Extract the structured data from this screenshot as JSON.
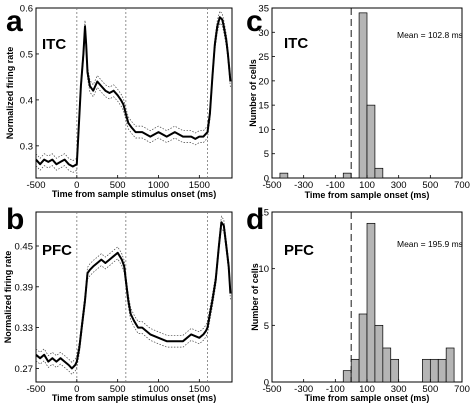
{
  "panels": {
    "a": {
      "letter": "a",
      "region": "ITC"
    },
    "b": {
      "letter": "b",
      "region": "PFC"
    },
    "c": {
      "letter": "c",
      "region": "ITC",
      "mean_label": "Mean = 102.8 ms"
    },
    "d": {
      "letter": "d",
      "region": "PFC",
      "mean_label": "Mean = 195.9 ms"
    }
  },
  "chart_data": [
    {
      "panel": "a",
      "type": "line",
      "title": "",
      "xlabel": "Time from sample stimulus onset   (ms)",
      "ylabel": "Normalized firing rate",
      "xlim": [
        -500,
        1900
      ],
      "ylim": [
        0.23,
        0.6
      ],
      "xticks": [
        -500,
        0,
        500,
        1000,
        1500
      ],
      "yticks": [
        0.3,
        0.4,
        0.5,
        0.6
      ],
      "ytick_labels": [
        "0.3",
        "0.4",
        "0.5",
        "0.6"
      ],
      "vlines": [
        0,
        600,
        1600
      ],
      "grid": false,
      "series": [
        {
          "x": [
            -500,
            -450,
            -400,
            -350,
            -300,
            -250,
            -200,
            -150,
            -100,
            -50,
            0,
            20,
            50,
            80,
            100,
            115,
            130,
            160,
            200,
            250,
            300,
            350,
            400,
            450,
            500,
            540,
            570,
            600,
            630,
            670,
            720,
            800,
            900,
            1000,
            1100,
            1200,
            1300,
            1400,
            1450,
            1500,
            1550,
            1600,
            1630,
            1660,
            1690,
            1720,
            1750,
            1780,
            1800,
            1830,
            1850,
            1870,
            1880
          ],
          "y": [
            0.27,
            0.26,
            0.27,
            0.265,
            0.27,
            0.26,
            0.265,
            0.27,
            0.26,
            0.255,
            0.26,
            0.33,
            0.43,
            0.5,
            0.56,
            0.52,
            0.46,
            0.43,
            0.42,
            0.44,
            0.43,
            0.42,
            0.415,
            0.42,
            0.41,
            0.4,
            0.39,
            0.37,
            0.35,
            0.34,
            0.33,
            0.33,
            0.32,
            0.33,
            0.32,
            0.33,
            0.32,
            0.32,
            0.315,
            0.32,
            0.32,
            0.33,
            0.37,
            0.45,
            0.52,
            0.56,
            0.58,
            0.575,
            0.56,
            0.53,
            0.5,
            0.46,
            0.44
          ]
        }
      ]
    },
    {
      "panel": "b",
      "type": "line",
      "title": "",
      "xlabel": "Time from sample stimulus onset   (ms)",
      "ylabel": "Normalized firing rate",
      "xlim": [
        -500,
        1900
      ],
      "ylim": [
        0.25,
        0.5
      ],
      "xticks": [
        -500,
        0,
        500,
        1000,
        1500
      ],
      "yticks": [
        0.27,
        0.33,
        0.39,
        0.45
      ],
      "ytick_labels": [
        "0.27",
        "0.33",
        "0.39",
        "0.45"
      ],
      "vlines": [
        0,
        600,
        1600
      ],
      "grid": false,
      "series": [
        {
          "x": [
            -500,
            -450,
            -400,
            -350,
            -300,
            -250,
            -200,
            -150,
            -100,
            -60,
            -20,
            0,
            30,
            60,
            100,
            130,
            160,
            200,
            250,
            300,
            350,
            400,
            450,
            500,
            550,
            580,
            600,
            630,
            660,
            700,
            750,
            800,
            900,
            1000,
            1100,
            1200,
            1300,
            1400,
            1500,
            1550,
            1580,
            1600,
            1630,
            1660,
            1700,
            1740,
            1770,
            1800,
            1830,
            1860,
            1880
          ],
          "y": [
            0.29,
            0.285,
            0.29,
            0.28,
            0.285,
            0.28,
            0.285,
            0.28,
            0.275,
            0.27,
            0.275,
            0.28,
            0.3,
            0.33,
            0.37,
            0.41,
            0.415,
            0.42,
            0.425,
            0.43,
            0.425,
            0.43,
            0.435,
            0.44,
            0.43,
            0.42,
            0.4,
            0.37,
            0.35,
            0.34,
            0.33,
            0.33,
            0.32,
            0.315,
            0.31,
            0.31,
            0.31,
            0.32,
            0.315,
            0.32,
            0.325,
            0.33,
            0.35,
            0.37,
            0.4,
            0.45,
            0.485,
            0.48,
            0.45,
            0.42,
            0.38
          ]
        }
      ]
    },
    {
      "panel": "c",
      "type": "bar",
      "title": "",
      "xlabel": "Time from sample onset   (ms)",
      "ylabel": "Number of cells",
      "xlim": [
        -500,
        700
      ],
      "ylim": [
        0,
        35
      ],
      "xticks": [
        -500,
        -300,
        -100,
        100,
        300,
        500,
        700
      ],
      "yticks": [
        0,
        5,
        10,
        15,
        20,
        25,
        30,
        35
      ],
      "bin_width": 50,
      "vline": 0,
      "series": [
        {
          "bin_starts": [
            -450,
            -50,
            50,
            100,
            150,
            200
          ],
          "values": [
            1,
            1,
            34,
            15,
            2,
            0
          ]
        }
      ]
    },
    {
      "panel": "d",
      "type": "bar",
      "title": "",
      "xlabel": "Time from sample onset   (ms)",
      "ylabel": "Number of cells",
      "xlim": [
        -500,
        700
      ],
      "ylim": [
        0,
        15
      ],
      "xticks": [
        -500,
        -300,
        -100,
        100,
        300,
        500,
        700
      ],
      "yticks": [
        0,
        5,
        10,
        15
      ],
      "bin_width": 50,
      "vline": 0,
      "series": [
        {
          "bin_starts": [
            -50,
            0,
            50,
            100,
            150,
            200,
            250,
            400,
            450,
            500,
            550,
            600
          ],
          "values": [
            1,
            2,
            6,
            14,
            5,
            3,
            2,
            0,
            2,
            2,
            2,
            3
          ]
        }
      ]
    }
  ]
}
